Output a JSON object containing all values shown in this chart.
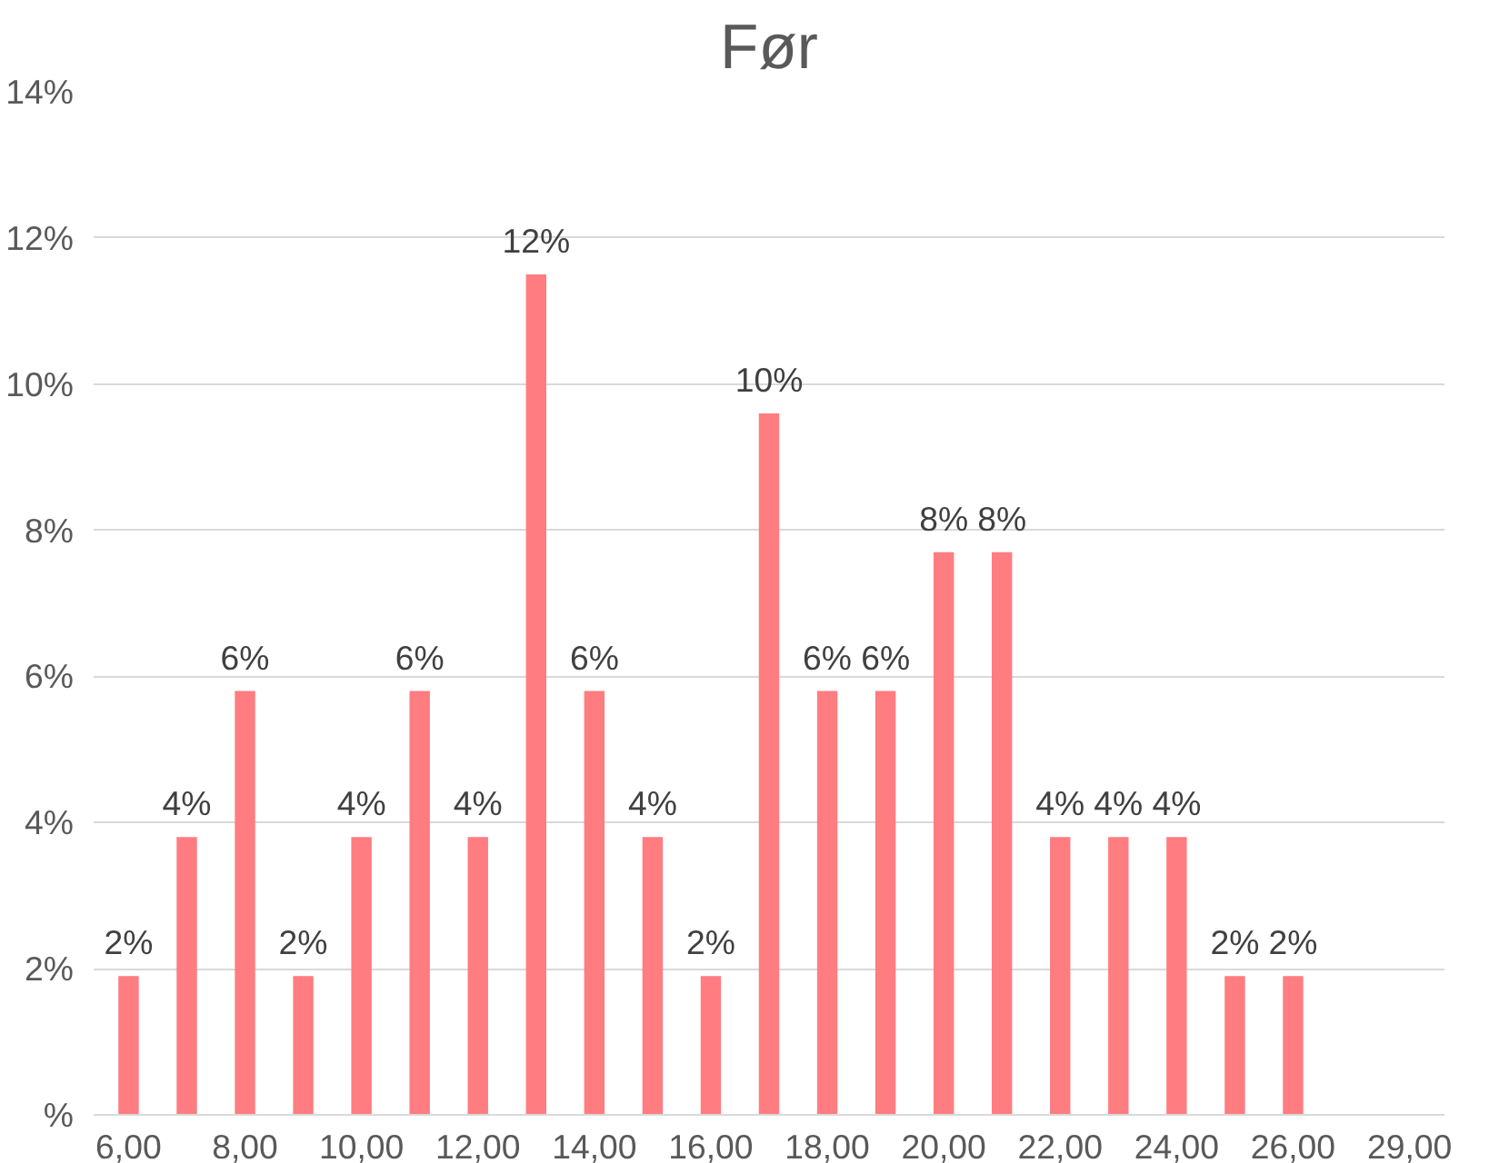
{
  "chart_data": {
    "type": "bar",
    "title": "Før",
    "categories": [
      "6,00",
      null,
      "8,00",
      null,
      "10,00",
      null,
      "12,00",
      null,
      "14,00",
      null,
      "16,00",
      null,
      "18,00",
      null,
      "20,00",
      null,
      "22,00",
      null,
      "24,00",
      null,
      "26,00",
      null,
      "29,00"
    ],
    "values": [
      1.9,
      3.8,
      5.8,
      1.9,
      3.8,
      5.8,
      3.8,
      11.5,
      5.8,
      3.8,
      1.9,
      9.6,
      5.8,
      5.8,
      7.7,
      7.7,
      3.8,
      3.8,
      3.8,
      1.9,
      1.9,
      null,
      null
    ],
    "value_labels": [
      "2%",
      "4%",
      "6%",
      "2%",
      "4%",
      "6%",
      "4%",
      "12%",
      "6%",
      "4%",
      "2%",
      "10%",
      "6%",
      "6%",
      "8%",
      "8%",
      "4%",
      "4%",
      "4%",
      "2%",
      "2%",
      null,
      null
    ],
    "color": "#ff7c80",
    "ylim": [
      0,
      14
    ],
    "yticks": [
      {
        "value": 0,
        "label": "%"
      },
      {
        "value": 2,
        "label": "2%"
      },
      {
        "value": 4,
        "label": "4%"
      },
      {
        "value": 6,
        "label": "6%"
      },
      {
        "value": 8,
        "label": "8%"
      },
      {
        "value": 10,
        "label": "10%"
      },
      {
        "value": 12,
        "label": "12%"
      },
      {
        "value": 14,
        "label": "14%"
      }
    ],
    "grid": "y"
  }
}
